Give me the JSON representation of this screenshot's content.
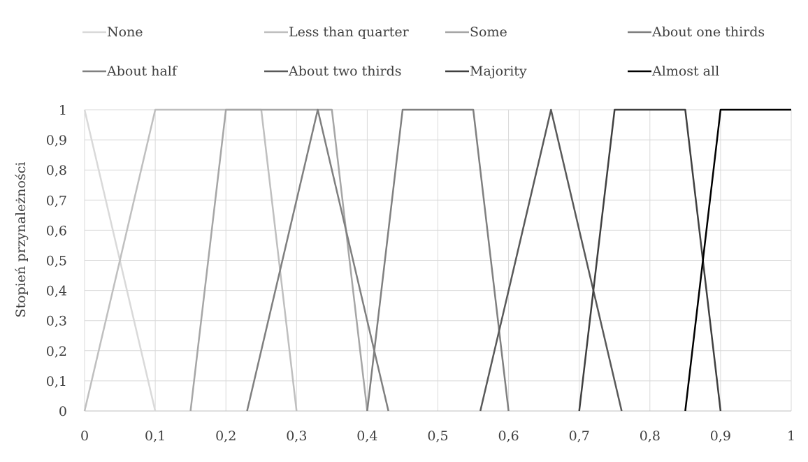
{
  "chart_data": {
    "type": "line",
    "title": "",
    "xlabel": "",
    "ylabel": "Stopień przynależności",
    "xlim": [
      0,
      1
    ],
    "ylim": [
      0,
      1
    ],
    "grid": true,
    "legend_position": "top",
    "x_ticks": [
      "0",
      "0,1",
      "0,2",
      "0,3",
      "0,4",
      "0,5",
      "0,6",
      "0,7",
      "0,8",
      "0,9",
      "1"
    ],
    "y_ticks": [
      "0",
      "0,1",
      "0,2",
      "0,3",
      "0,4",
      "0,5",
      "0,6",
      "0,7",
      "0,8",
      "0,9",
      "1"
    ],
    "series": [
      {
        "name": "None",
        "color": "#d9d9d9",
        "x": [
          0,
          0.1
        ],
        "y": [
          1,
          0
        ]
      },
      {
        "name": "Less than quarter",
        "color": "#bfbfbf",
        "x": [
          0,
          0.1,
          0.25,
          0.3
        ],
        "y": [
          0,
          1,
          1,
          0
        ]
      },
      {
        "name": "Some",
        "color": "#a6a6a6",
        "x": [
          0.15,
          0.2,
          0.35,
          0.4
        ],
        "y": [
          0,
          1,
          1,
          0
        ]
      },
      {
        "name": "About one thirds",
        "color": "#7f7f7f",
        "x": [
          0.23,
          0.33,
          0.43
        ],
        "y": [
          0,
          1,
          0
        ]
      },
      {
        "name": "About half",
        "color": "#808080",
        "x": [
          0.4,
          0.45,
          0.55,
          0.6
        ],
        "y": [
          0,
          1,
          1,
          0
        ]
      },
      {
        "name": "About two thirds",
        "color": "#595959",
        "x": [
          0.56,
          0.66,
          0.76
        ],
        "y": [
          0,
          1,
          0
        ]
      },
      {
        "name": "Majority",
        "color": "#404040",
        "x": [
          0.7,
          0.75,
          0.85,
          0.9
        ],
        "y": [
          0,
          1,
          1,
          0
        ]
      },
      {
        "name": "Almost all",
        "color": "#000000",
        "x": [
          0.85,
          0.9,
          1
        ],
        "y": [
          0,
          1,
          1
        ]
      }
    ]
  }
}
